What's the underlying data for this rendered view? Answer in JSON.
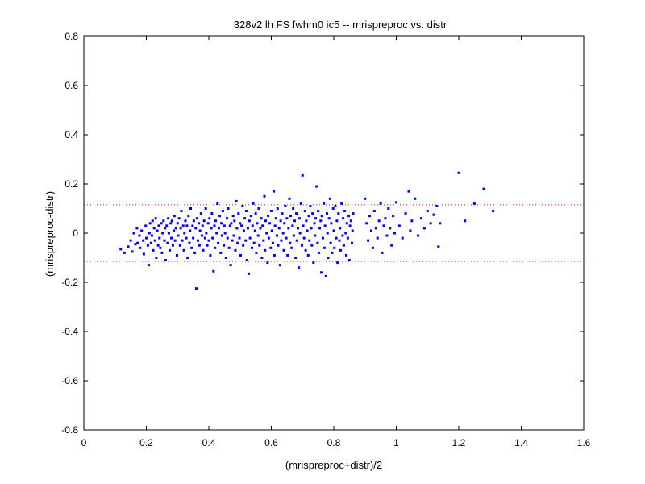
{
  "chart_data": {
    "type": "scatter",
    "title": "328v2 lh FS fwhm0 ic5 -- mrispreproc vs. distr",
    "xlabel": "(mrispreproc+distr)/2",
    "ylabel": "(mrispreproc-distr)",
    "xlim": [
      0,
      1.6
    ],
    "ylim": [
      -0.8,
      0.8
    ],
    "xticks": [
      "0",
      "0.2",
      "0.4",
      "0.6",
      "0.8",
      "1",
      "1.2",
      "1.4",
      "1.6"
    ],
    "yticks": [
      "-0.8",
      "-0.6",
      "-0.4",
      "-0.2",
      "0",
      "0.2",
      "0.4",
      "0.6",
      "0.8"
    ],
    "grid": false,
    "marker_color": "#0000ff",
    "reference_lines": [
      {
        "y": 0.115,
        "style": "dotted",
        "color": "#ff0000"
      },
      {
        "y": -0.115,
        "style": "dotted",
        "color": "#ff0000"
      }
    ],
    "points": [
      [
        0.118,
        -0.065
      ],
      [
        0.13,
        -0.08
      ],
      [
        0.142,
        -0.055
      ],
      [
        0.15,
        -0.03
      ],
      [
        0.155,
        -0.075
      ],
      [
        0.16,
        0.0
      ],
      [
        0.165,
        -0.045
      ],
      [
        0.17,
        0.02
      ],
      [
        0.172,
        -0.04
      ],
      [
        0.178,
        -0.01
      ],
      [
        0.18,
        -0.06
      ],
      [
        0.185,
        0.01
      ],
      [
        0.19,
        -0.03
      ],
      [
        0.192,
        -0.085
      ],
      [
        0.198,
        0.03
      ],
      [
        0.2,
        -0.02
      ],
      [
        0.205,
        -0.05
      ],
      [
        0.208,
        -0.13
      ],
      [
        0.21,
        0.0
      ],
      [
        0.212,
        0.04
      ],
      [
        0.215,
        -0.04
      ],
      [
        0.218,
        -0.01
      ],
      [
        0.22,
        0.05
      ],
      [
        0.222,
        -0.07
      ],
      [
        0.225,
        0.02
      ],
      [
        0.228,
        -0.03
      ],
      [
        0.23,
        0.06
      ],
      [
        0.232,
        -0.1
      ],
      [
        0.235,
        0.01
      ],
      [
        0.238,
        -0.05
      ],
      [
        0.24,
        0.03
      ],
      [
        0.242,
        -0.02
      ],
      [
        0.245,
        -0.06
      ],
      [
        0.248,
        0.04
      ],
      [
        0.25,
        -0.08
      ],
      [
        0.252,
        0.0
      ],
      [
        0.255,
        0.05
      ],
      [
        0.258,
        -0.03
      ],
      [
        0.26,
        0.02
      ],
      [
        0.262,
        -0.11
      ],
      [
        0.265,
        0.03
      ],
      [
        0.268,
        -0.04
      ],
      [
        0.27,
        0.06
      ],
      [
        0.272,
        0.0
      ],
      [
        0.275,
        -0.07
      ],
      [
        0.278,
        0.04
      ],
      [
        0.28,
        -0.02
      ],
      [
        0.282,
        0.05
      ],
      [
        0.285,
        -0.05
      ],
      [
        0.288,
        0.01
      ],
      [
        0.29,
        0.07
      ],
      [
        0.292,
        -0.03
      ],
      [
        0.295,
        0.02
      ],
      [
        0.298,
        -0.09
      ],
      [
        0.3,
        0.04
      ],
      [
        0.302,
        -0.01
      ],
      [
        0.305,
        0.06
      ],
      [
        0.308,
        -0.05
      ],
      [
        0.31,
        0.02
      ],
      [
        0.312,
        0.09
      ],
      [
        0.315,
        -0.03
      ],
      [
        0.318,
        0.03
      ],
      [
        0.32,
        -0.07
      ],
      [
        0.322,
        0.0
      ],
      [
        0.325,
        0.05
      ],
      [
        0.328,
        -0.02
      ],
      [
        0.33,
        0.03
      ],
      [
        0.332,
        -0.1
      ],
      [
        0.335,
        0.07
      ],
      [
        0.338,
        -0.04
      ],
      [
        0.34,
        0.01
      ],
      [
        0.342,
        0.1
      ],
      [
        0.345,
        -0.06
      ],
      [
        0.348,
        0.03
      ],
      [
        0.35,
        -0.02
      ],
      [
        0.352,
        0.05
      ],
      [
        0.355,
        -0.08
      ],
      [
        0.358,
        0.02
      ],
      [
        0.36,
        -0.225
      ],
      [
        0.362,
        0.06
      ],
      [
        0.365,
        -0.03
      ],
      [
        0.368,
        0.04
      ],
      [
        0.37,
        -0.05
      ],
      [
        0.372,
        0.01
      ],
      [
        0.375,
        0.08
      ],
      [
        0.378,
        -0.01
      ],
      [
        0.38,
        0.03
      ],
      [
        0.382,
        -0.07
      ],
      [
        0.385,
        0.05
      ],
      [
        0.388,
        -0.02
      ],
      [
        0.39,
        0.1
      ],
      [
        0.392,
        0.0
      ],
      [
        0.395,
        -0.05
      ],
      [
        0.398,
        0.04
      ],
      [
        0.4,
        -0.03
      ],
      [
        0.402,
        0.06
      ],
      [
        0.405,
        -0.09
      ],
      [
        0.408,
        0.02
      ],
      [
        0.41,
        0.08
      ],
      [
        0.412,
        -0.02
      ],
      [
        0.415,
        -0.155
      ],
      [
        0.418,
        0.03
      ],
      [
        0.42,
        -0.06
      ],
      [
        0.422,
        0.05
      ],
      [
        0.425,
        0.0
      ],
      [
        0.428,
        0.12
      ],
      [
        0.43,
        -0.04
      ],
      [
        0.432,
        0.02
      ],
      [
        0.435,
        0.07
      ],
      [
        0.438,
        -0.08
      ],
      [
        0.44,
        0.04
      ],
      [
        0.442,
        -0.01
      ],
      [
        0.445,
        0.09
      ],
      [
        0.448,
        -0.05
      ],
      [
        0.45,
        0.03
      ],
      [
        0.452,
        0.0
      ],
      [
        0.455,
        -0.1
      ],
      [
        0.458,
        0.06
      ],
      [
        0.46,
        -0.02
      ],
      [
        0.462,
        0.1
      ],
      [
        0.465,
        -0.06
      ],
      [
        0.468,
        0.03
      ],
      [
        0.47,
        -0.13
      ],
      [
        0.472,
        0.04
      ],
      [
        0.475,
        -0.03
      ],
      [
        0.478,
        0.07
      ],
      [
        0.48,
        -0.01
      ],
      [
        0.482,
        0.05
      ],
      [
        0.485,
        -0.07
      ],
      [
        0.488,
        0.13
      ],
      [
        0.49,
        0.02
      ],
      [
        0.492,
        -0.04
      ],
      [
        0.495,
        0.08
      ],
      [
        0.498,
        -0.02
      ],
      [
        0.5,
        0.04
      ],
      [
        0.502,
        -0.09
      ],
      [
        0.505,
        0.03
      ],
      [
        0.508,
        0.11
      ],
      [
        0.51,
        -0.05
      ],
      [
        0.512,
        0.01
      ],
      [
        0.515,
        0.06
      ],
      [
        0.518,
        -0.03
      ],
      [
        0.52,
        0.09
      ],
      [
        0.522,
        -0.11
      ],
      [
        0.525,
        0.02
      ],
      [
        0.528,
        -0.165
      ],
      [
        0.53,
        0.05
      ],
      [
        0.532,
        -0.02
      ],
      [
        0.535,
        0.07
      ],
      [
        0.538,
        -0.06
      ],
      [
        0.54,
        0.03
      ],
      [
        0.542,
        0.12
      ],
      [
        0.545,
        -0.04
      ],
      [
        0.548,
        0.01
      ],
      [
        0.55,
        0.08
      ],
      [
        0.552,
        -0.08
      ],
      [
        0.555,
        0.04
      ],
      [
        0.558,
        -0.01
      ],
      [
        0.56,
        0.1
      ],
      [
        0.562,
        -0.05
      ],
      [
        0.565,
        0.02
      ],
      [
        0.568,
        0.06
      ],
      [
        0.57,
        -0.1
      ],
      [
        0.572,
        0.03
      ],
      [
        0.575,
        -0.03
      ],
      [
        0.578,
        0.15
      ],
      [
        0.58,
        -0.07
      ],
      [
        0.582,
        0.05
      ],
      [
        0.585,
        0.0
      ],
      [
        0.588,
        -0.12
      ],
      [
        0.59,
        0.07
      ],
      [
        0.592,
        -0.02
      ],
      [
        0.595,
        0.04
      ],
      [
        0.598,
        -0.06
      ],
      [
        0.6,
        0.09
      ],
      [
        0.602,
        0.01
      ],
      [
        0.605,
        -0.04
      ],
      [
        0.608,
        0.17
      ],
      [
        0.61,
        -0.09
      ],
      [
        0.612,
        0.03
      ],
      [
        0.615,
        0.06
      ],
      [
        0.618,
        -0.01
      ],
      [
        0.62,
        0.1
      ],
      [
        0.622,
        -0.05
      ],
      [
        0.625,
        0.02
      ],
      [
        0.628,
        -0.13
      ],
      [
        0.63,
        0.05
      ],
      [
        0.632,
        -0.03
      ],
      [
        0.635,
        0.08
      ],
      [
        0.638,
        0.0
      ],
      [
        0.64,
        -0.07
      ],
      [
        0.642,
        0.04
      ],
      [
        0.645,
        0.11
      ],
      [
        0.648,
        -0.02
      ],
      [
        0.65,
        0.06
      ],
      [
        0.652,
        -0.09
      ],
      [
        0.655,
        0.02
      ],
      [
        0.658,
        0.14
      ],
      [
        0.66,
        -0.04
      ],
      [
        0.662,
        0.07
      ],
      [
        0.665,
        -0.06
      ],
      [
        0.668,
        0.03
      ],
      [
        0.67,
        0.1
      ],
      [
        0.672,
        -0.01
      ],
      [
        0.675,
        0.05
      ],
      [
        0.678,
        -0.1
      ],
      [
        0.68,
        0.08
      ],
      [
        0.682,
        -0.03
      ],
      [
        0.685,
        0.02
      ],
      [
        0.688,
        -0.14
      ],
      [
        0.69,
        0.06
      ],
      [
        0.692,
        0.0
      ],
      [
        0.695,
        0.12
      ],
      [
        0.698,
        -0.05
      ],
      [
        0.7,
        0.235
      ],
      [
        0.702,
        0.03
      ],
      [
        0.705,
        -0.02
      ],
      [
        0.708,
        0.09
      ],
      [
        0.71,
        -0.07
      ],
      [
        0.712,
        0.05
      ],
      [
        0.715,
        0.01
      ],
      [
        0.718,
        -0.09
      ],
      [
        0.72,
        0.07
      ],
      [
        0.722,
        -0.03
      ],
      [
        0.725,
        0.11
      ],
      [
        0.728,
        0.02
      ],
      [
        0.73,
        -0.05
      ],
      [
        0.732,
        0.08
      ],
      [
        0.735,
        -0.12
      ],
      [
        0.738,
        0.04
      ],
      [
        0.74,
        -0.01
      ],
      [
        0.742,
        0.06
      ],
      [
        0.745,
        0.19
      ],
      [
        0.748,
        -0.04
      ],
      [
        0.75,
        0.09
      ],
      [
        0.752,
        -0.08
      ],
      [
        0.755,
        0.02
      ],
      [
        0.758,
        0.05
      ],
      [
        0.76,
        -0.16
      ],
      [
        0.762,
        0.07
      ],
      [
        0.765,
        -0.02
      ],
      [
        0.768,
        0.12
      ],
      [
        0.77,
        -0.06
      ],
      [
        0.772,
        0.03
      ],
      [
        0.775,
        -0.175
      ],
      [
        0.778,
        0.08
      ],
      [
        0.78,
        0.0
      ],
      [
        0.782,
        -0.1
      ],
      [
        0.785,
        0.06
      ],
      [
        0.788,
        0.14
      ],
      [
        0.79,
        -0.04
      ],
      [
        0.792,
        0.04
      ],
      [
        0.795,
        -0.08
      ],
      [
        0.798,
        0.1
      ],
      [
        0.8,
        0.01
      ],
      [
        0.802,
        -0.06
      ],
      [
        0.805,
        0.11
      ],
      [
        0.808,
        -0.02
      ],
      [
        0.81,
        0.05
      ],
      [
        0.812,
        -0.12
      ],
      [
        0.815,
        0.08
      ],
      [
        0.818,
        -0.03
      ],
      [
        0.82,
        0.02
      ],
      [
        0.822,
        -0.07
      ],
      [
        0.825,
        0.12
      ],
      [
        0.828,
        -0.01
      ],
      [
        0.83,
        0.06
      ],
      [
        0.832,
        -0.05
      ],
      [
        0.835,
        0.09
      ],
      [
        0.838,
        0.0
      ],
      [
        0.84,
        -0.09
      ],
      [
        0.842,
        0.04
      ],
      [
        0.845,
        -0.02
      ],
      [
        0.848,
        0.07
      ],
      [
        0.85,
        -0.11
      ],
      [
        0.852,
        0.03
      ],
      [
        0.855,
        0.05
      ],
      [
        0.858,
        -0.04
      ],
      [
        0.86,
        0.01
      ],
      [
        0.862,
        0.08
      ],
      [
        0.9,
        0.14
      ],
      [
        0.905,
        0.04
      ],
      [
        0.91,
        -0.03
      ],
      [
        0.915,
        0.07
      ],
      [
        0.92,
        0.01
      ],
      [
        0.925,
        -0.06
      ],
      [
        0.93,
        0.09
      ],
      [
        0.935,
        0.02
      ],
      [
        0.94,
        -0.02
      ],
      [
        0.945,
        0.05
      ],
      [
        0.95,
        0.12
      ],
      [
        0.955,
        -0.08
      ],
      [
        0.96,
        0.03
      ],
      [
        0.965,
        0.06
      ],
      [
        0.97,
        -0.01
      ],
      [
        0.975,
        0.1
      ],
      [
        0.98,
        0.02
      ],
      [
        0.985,
        -0.05
      ],
      [
        0.99,
        0.07
      ],
      [
        0.995,
        0.0
      ],
      [
        1.0,
        0.125
      ],
      [
        1.01,
        0.03
      ],
      [
        1.02,
        -0.02
      ],
      [
        1.03,
        0.08
      ],
      [
        1.04,
        0.17
      ],
      [
        1.045,
        0.01
      ],
      [
        1.05,
        0.05
      ],
      [
        1.06,
        0.14
      ],
      [
        1.07,
        -0.01
      ],
      [
        1.08,
        0.06
      ],
      [
        1.09,
        0.02
      ],
      [
        1.1,
        0.09
      ],
      [
        1.11,
        0.04
      ],
      [
        1.12,
        0.075
      ],
      [
        1.13,
        0.11
      ],
      [
        1.135,
        -0.055
      ],
      [
        1.14,
        0.04
      ],
      [
        1.2,
        0.245
      ],
      [
        1.22,
        0.05
      ],
      [
        1.25,
        0.12
      ],
      [
        1.28,
        0.18
      ],
      [
        1.31,
        0.09
      ]
    ]
  }
}
